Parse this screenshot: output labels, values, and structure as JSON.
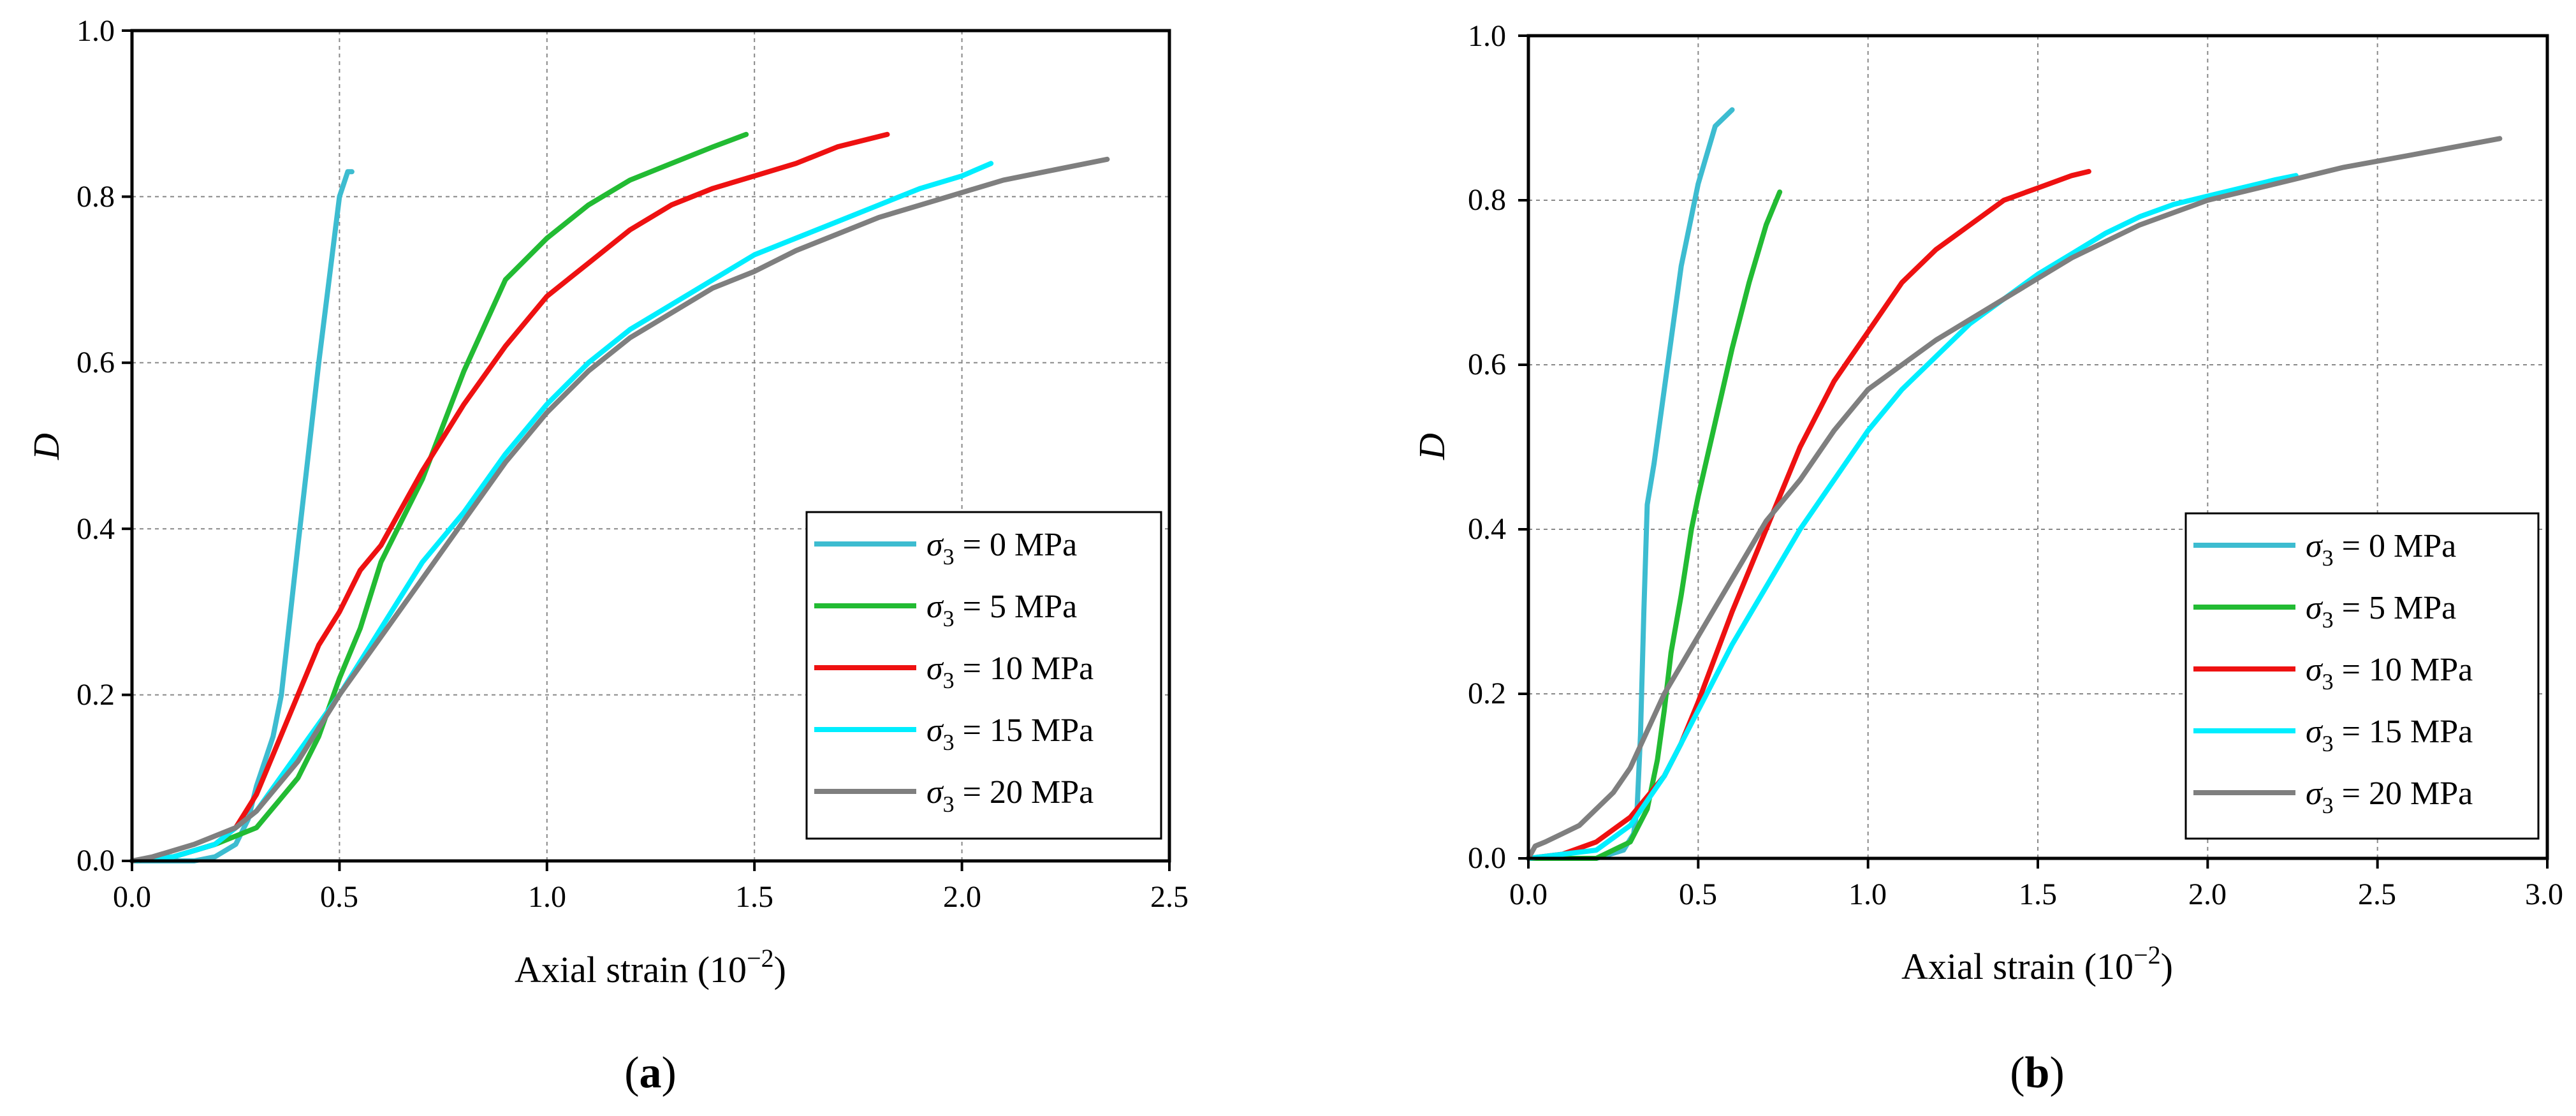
{
  "figure": {
    "panels": [
      {
        "label": "(a)",
        "label_main": "a"
      },
      {
        "label": "(b)",
        "label_main": "b"
      }
    ]
  },
  "chart_data": [
    {
      "type": "line",
      "panel": "a",
      "title": "",
      "xlabel": "Axial strain (10−2)",
      "xlabel_base": "Axial strain (10",
      "xlabel_exp": "−2",
      "xlabel_close": ")",
      "ylabel": "D",
      "xlim": [
        0,
        2.5
      ],
      "ylim": [
        0,
        1.0
      ],
      "xticks": [
        0,
        0.5,
        1.0,
        1.5,
        2.0,
        2.5
      ],
      "xtick_labels": [
        "0.0",
        "0.5",
        "1.0",
        "1.5",
        "2.0",
        "2.5"
      ],
      "yticks": [
        0,
        0.2,
        0.4,
        0.6,
        0.8,
        1.0
      ],
      "ytick_labels": [
        "0.0",
        "0.2",
        "0.4",
        "0.6",
        "0.8",
        "1.0"
      ],
      "grid": true,
      "legend_position": "lower-right",
      "series": [
        {
          "name": "σ3 = 0 MPa",
          "sym": "σ",
          "sub": "3",
          "rest": " = 0 MPa",
          "color": "#3dbcd0",
          "x": [
            0.0,
            0.15,
            0.2,
            0.25,
            0.28,
            0.3,
            0.32,
            0.34,
            0.36,
            0.4,
            0.45,
            0.5,
            0.52,
            0.53
          ],
          "y": [
            0.0,
            0.0,
            0.005,
            0.02,
            0.05,
            0.09,
            0.12,
            0.15,
            0.2,
            0.38,
            0.6,
            0.8,
            0.83,
            0.83
          ]
        },
        {
          "name": "σ3 = 5 MPa",
          "sym": "σ",
          "sub": "3",
          "rest": " = 5 MPa",
          "color": "#22bb33",
          "x": [
            0.0,
            0.1,
            0.2,
            0.3,
            0.35,
            0.4,
            0.45,
            0.5,
            0.55,
            0.6,
            0.7,
            0.8,
            0.9,
            1.0,
            1.1,
            1.2,
            1.3,
            1.4,
            1.48
          ],
          "y": [
            0.0,
            0.005,
            0.02,
            0.04,
            0.07,
            0.1,
            0.15,
            0.22,
            0.28,
            0.36,
            0.46,
            0.59,
            0.7,
            0.75,
            0.79,
            0.82,
            0.84,
            0.86,
            0.875
          ]
        },
        {
          "name": "σ3 = 10 MPa",
          "sym": "σ",
          "sub": "3",
          "rest": " = 10 MPa",
          "color": "#ee1111",
          "x": [
            0.0,
            0.1,
            0.2,
            0.25,
            0.3,
            0.35,
            0.4,
            0.45,
            0.5,
            0.55,
            0.6,
            0.7,
            0.8,
            0.9,
            1.0,
            1.1,
            1.2,
            1.3,
            1.4,
            1.5,
            1.6,
            1.7,
            1.82
          ],
          "y": [
            0.0,
            0.005,
            0.02,
            0.04,
            0.08,
            0.14,
            0.2,
            0.26,
            0.3,
            0.35,
            0.38,
            0.47,
            0.55,
            0.62,
            0.68,
            0.72,
            0.76,
            0.79,
            0.81,
            0.825,
            0.84,
            0.86,
            0.875
          ]
        },
        {
          "name": "σ3 = 15 MPa",
          "sym": "σ",
          "sub": "3",
          "rest": " = 15 MPa",
          "color": "#00eeff",
          "x": [
            0.0,
            0.1,
            0.2,
            0.3,
            0.4,
            0.5,
            0.6,
            0.7,
            0.8,
            0.9,
            1.0,
            1.1,
            1.2,
            1.3,
            1.4,
            1.5,
            1.6,
            1.7,
            1.8,
            1.9,
            2.0,
            2.07
          ],
          "y": [
            0.0,
            0.005,
            0.02,
            0.06,
            0.13,
            0.2,
            0.28,
            0.36,
            0.42,
            0.49,
            0.55,
            0.6,
            0.64,
            0.67,
            0.7,
            0.73,
            0.75,
            0.77,
            0.79,
            0.81,
            0.825,
            0.84
          ]
        },
        {
          "name": "σ3 = 20 MPa",
          "sym": "σ",
          "sub": "3",
          "rest": " = 20 MPa",
          "color": "#7f7f7f",
          "x": [
            0.0,
            0.05,
            0.15,
            0.25,
            0.3,
            0.4,
            0.5,
            0.6,
            0.7,
            0.8,
            0.9,
            1.0,
            1.1,
            1.2,
            1.3,
            1.4,
            1.5,
            1.6,
            1.7,
            1.8,
            1.9,
            2.0,
            2.1,
            2.2,
            2.35
          ],
          "y": [
            0.0,
            0.005,
            0.02,
            0.04,
            0.06,
            0.12,
            0.2,
            0.27,
            0.34,
            0.41,
            0.48,
            0.54,
            0.59,
            0.63,
            0.66,
            0.69,
            0.71,
            0.735,
            0.755,
            0.775,
            0.79,
            0.805,
            0.82,
            0.83,
            0.845
          ]
        }
      ]
    },
    {
      "type": "line",
      "panel": "b",
      "title": "",
      "xlabel": "Axial strain (10−2)",
      "xlabel_base": "Axial strain (10",
      "xlabel_exp": "−2",
      "xlabel_close": ")",
      "ylabel": "D",
      "xlim": [
        0,
        3.0
      ],
      "ylim": [
        0,
        1.0
      ],
      "xticks": [
        0,
        0.5,
        1.0,
        1.5,
        2.0,
        2.5,
        3.0
      ],
      "xtick_labels": [
        "0.0",
        "0.5",
        "1.0",
        "1.5",
        "2.0",
        "2.5",
        "3.0"
      ],
      "yticks": [
        0,
        0.2,
        0.4,
        0.6,
        0.8,
        1.0
      ],
      "ytick_labels": [
        "0.0",
        "0.2",
        "0.4",
        "0.6",
        "0.8",
        "1.0"
      ],
      "grid": true,
      "legend_position": "lower-right",
      "series": [
        {
          "name": "σ3 = 0 MPa",
          "sym": "σ",
          "sub": "3",
          "rest": " = 0 MPa",
          "color": "#3dbcd0",
          "x": [
            0.0,
            0.2,
            0.28,
            0.31,
            0.32,
            0.33,
            0.34,
            0.35,
            0.37,
            0.4,
            0.45,
            0.5,
            0.55,
            0.6
          ],
          "y": [
            0.0,
            0.0,
            0.01,
            0.03,
            0.06,
            0.15,
            0.3,
            0.43,
            0.48,
            0.57,
            0.72,
            0.82,
            0.89,
            0.91
          ]
        },
        {
          "name": "σ3 = 5 MPa",
          "sym": "σ",
          "sub": "3",
          "rest": " = 5 MPa",
          "color": "#22bb33",
          "x": [
            0.0,
            0.2,
            0.3,
            0.35,
            0.38,
            0.4,
            0.42,
            0.45,
            0.48,
            0.5,
            0.55,
            0.6,
            0.65,
            0.7,
            0.72,
            0.74
          ],
          "y": [
            0.0,
            0.0,
            0.02,
            0.06,
            0.12,
            0.18,
            0.25,
            0.32,
            0.4,
            0.44,
            0.53,
            0.62,
            0.7,
            0.77,
            0.79,
            0.81
          ]
        },
        {
          "name": "σ3 = 10 MPa",
          "sym": "σ",
          "sub": "3",
          "rest": " = 10 MPa",
          "color": "#ee1111",
          "x": [
            0.0,
            0.1,
            0.2,
            0.3,
            0.4,
            0.45,
            0.5,
            0.6,
            0.7,
            0.8,
            0.9,
            1.0,
            1.1,
            1.2,
            1.3,
            1.4,
            1.5,
            1.6,
            1.65
          ],
          "y": [
            0.0,
            0.005,
            0.02,
            0.05,
            0.1,
            0.14,
            0.19,
            0.3,
            0.4,
            0.5,
            0.58,
            0.64,
            0.7,
            0.74,
            0.77,
            0.8,
            0.815,
            0.83,
            0.835
          ]
        },
        {
          "name": "σ3 = 15 MPa",
          "sym": "σ",
          "sub": "3",
          "rest": " = 15 MPa",
          "color": "#00eeff",
          "x": [
            0.0,
            0.2,
            0.3,
            0.4,
            0.5,
            0.6,
            0.7,
            0.8,
            0.9,
            1.0,
            1.1,
            1.2,
            1.3,
            1.4,
            1.5,
            1.6,
            1.7,
            1.8,
            1.9,
            2.0,
            2.1,
            2.2,
            2.26
          ],
          "y": [
            0.0,
            0.01,
            0.04,
            0.1,
            0.18,
            0.26,
            0.33,
            0.4,
            0.46,
            0.52,
            0.57,
            0.61,
            0.65,
            0.68,
            0.71,
            0.735,
            0.76,
            0.78,
            0.795,
            0.805,
            0.815,
            0.825,
            0.83
          ]
        },
        {
          "name": "σ3 = 20 MPa",
          "sym": "σ",
          "sub": "3",
          "rest": " = 20 MPa",
          "color": "#7f7f7f",
          "x": [
            0.0,
            0.02,
            0.05,
            0.1,
            0.15,
            0.2,
            0.25,
            0.3,
            0.4,
            0.5,
            0.6,
            0.7,
            0.8,
            0.9,
            1.0,
            1.2,
            1.4,
            1.6,
            1.8,
            2.0,
            2.2,
            2.4,
            2.6,
            2.86
          ],
          "y": [
            0.0,
            0.015,
            0.02,
            0.03,
            0.04,
            0.06,
            0.08,
            0.11,
            0.2,
            0.27,
            0.34,
            0.41,
            0.46,
            0.52,
            0.57,
            0.63,
            0.68,
            0.73,
            0.77,
            0.8,
            0.82,
            0.84,
            0.855,
            0.875
          ]
        }
      ]
    }
  ]
}
